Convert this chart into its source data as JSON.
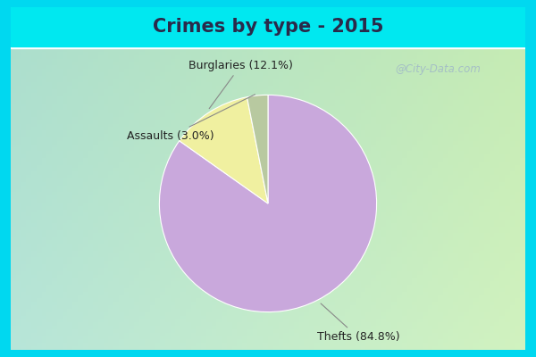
{
  "title": "Crimes by type - 2015",
  "slices": [
    {
      "label": "Thefts",
      "pct": 84.8,
      "color": "#c9a8dc"
    },
    {
      "label": "Burglaries",
      "pct": 12.1,
      "color": "#f0f0a0"
    },
    {
      "label": "Assaults",
      "pct": 3.1,
      "color": "#b8c9a0"
    }
  ],
  "bg_top_color": "#00e8f0",
  "bg_main_tl": "#b8e8e0",
  "bg_main_br": "#c8e8c0",
  "title_fontsize": 15,
  "label_fontsize": 9,
  "title_color": "#2a2a4a",
  "watermark": "@City-Data.com",
  "watermark_color": "#a0b8c8",
  "border_color": "#00d8f0",
  "border_width": 8
}
